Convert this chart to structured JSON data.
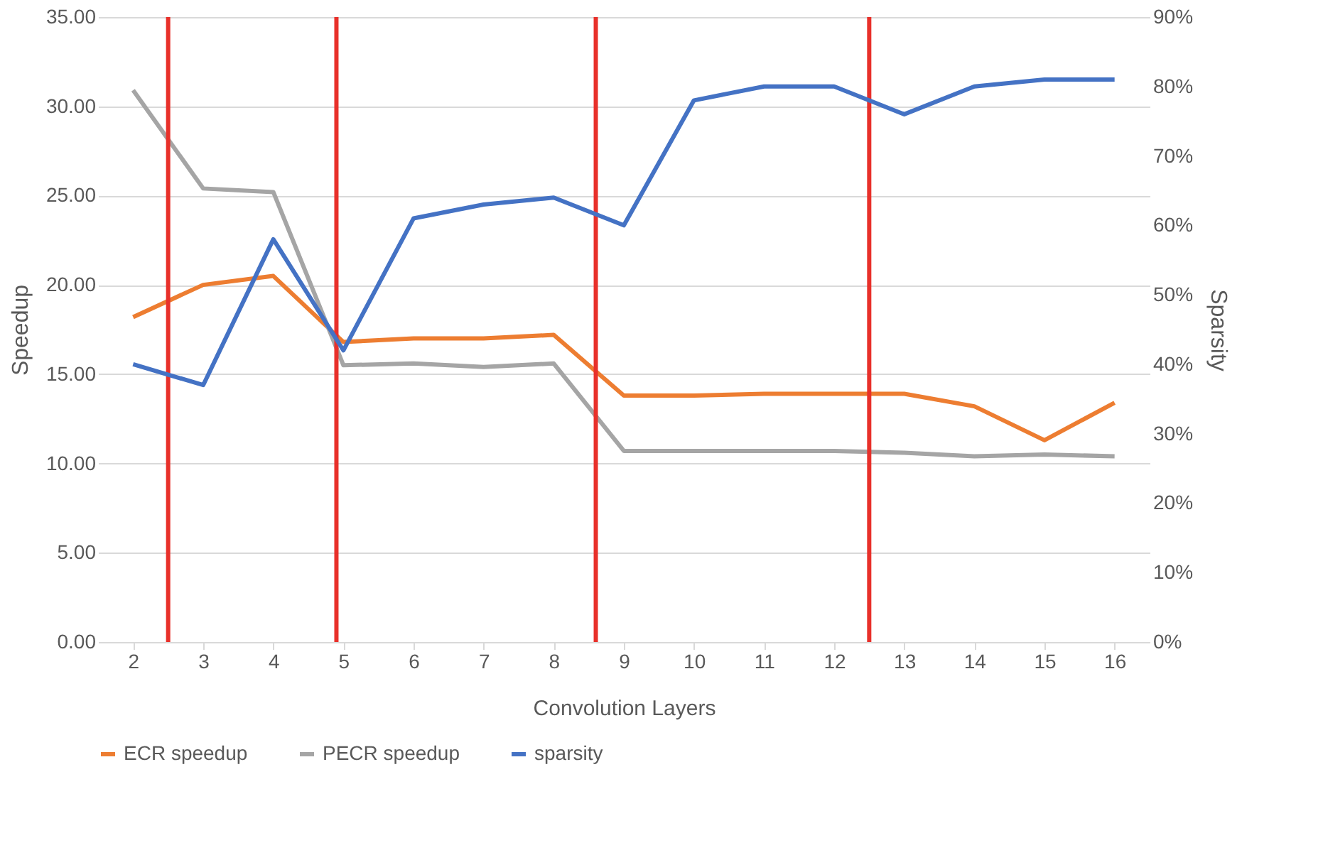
{
  "chart_data": {
    "type": "line",
    "xlabel": "Convolution Layers",
    "ylabel": "Speedup",
    "y2label": "Sparsity",
    "x": [
      2,
      3,
      4,
      5,
      6,
      7,
      8,
      9,
      10,
      11,
      12,
      13,
      14,
      15,
      16
    ],
    "xlim": [
      1.5,
      16.5
    ],
    "xticks": [
      2,
      3,
      4,
      5,
      6,
      7,
      8,
      9,
      10,
      11,
      12,
      13,
      14,
      15,
      16
    ],
    "ylim": [
      0,
      35
    ],
    "yticks": [
      {
        "value": 0,
        "label": "0.00"
      },
      {
        "value": 5,
        "label": "5.00"
      },
      {
        "value": 10,
        "label": "10.00"
      },
      {
        "value": 15,
        "label": "15.00"
      },
      {
        "value": 20,
        "label": "20.00"
      },
      {
        "value": 25,
        "label": "25.00"
      },
      {
        "value": 30,
        "label": "30.00"
      },
      {
        "value": 35,
        "label": "35.00"
      }
    ],
    "y2lim": [
      0,
      90
    ],
    "y2ticks": [
      {
        "value": 0,
        "label": "0%"
      },
      {
        "value": 10,
        "label": "10%"
      },
      {
        "value": 20,
        "label": "20%"
      },
      {
        "value": 30,
        "label": "30%"
      },
      {
        "value": 40,
        "label": "40%"
      },
      {
        "value": 50,
        "label": "50%"
      },
      {
        "value": 60,
        "label": "60%"
      },
      {
        "value": 70,
        "label": "70%"
      },
      {
        "value": 80,
        "label": "80%"
      },
      {
        "value": 90,
        "label": "90%"
      }
    ],
    "series": [
      {
        "name": "ECR speedup",
        "color": "#ed7d31",
        "values": [
          18.2,
          20.0,
          20.5,
          16.8,
          17.0,
          17.0,
          17.2,
          13.8,
          13.8,
          13.9,
          13.9,
          13.9,
          13.2,
          11.3,
          13.4
        ]
      },
      {
        "name": "PECR speedup",
        "color": "#a5a5a5",
        "values": [
          30.9,
          25.4,
          25.2,
          15.5,
          15.6,
          15.4,
          15.6,
          10.7,
          10.7,
          10.7,
          10.7,
          10.6,
          10.4,
          10.5,
          10.4
        ]
      },
      {
        "name": "sparsity",
        "color": "#4472c4",
        "axis": "y2",
        "values": [
          40,
          37,
          58,
          42,
          61,
          63,
          64,
          60,
          78,
          80,
          80,
          76,
          80,
          81,
          81
        ]
      }
    ],
    "ref_lines": [
      {
        "axis": "x",
        "value": 2.5,
        "color": "#e8302a"
      },
      {
        "axis": "x",
        "value": 4.9,
        "color": "#e8302a"
      },
      {
        "axis": "x",
        "value": 8.6,
        "color": "#e8302a"
      },
      {
        "axis": "x",
        "value": 12.5,
        "color": "#e8302a"
      }
    ],
    "grid": "y",
    "legend": "bottom",
    "line_style": "solid",
    "marker": "none"
  }
}
